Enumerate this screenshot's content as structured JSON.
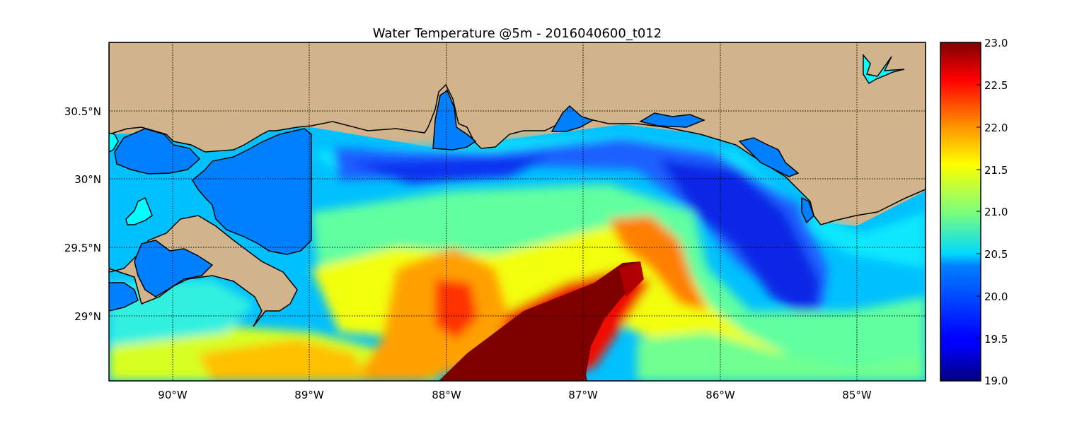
{
  "chart_data": {
    "type": "heatmap",
    "title": "Water Temperature @5m - 2016040600_t012",
    "x_ticks": [
      {
        "value": -90,
        "label": "90°W"
      },
      {
        "value": -89,
        "label": "89°W"
      },
      {
        "value": -88,
        "label": "88°W"
      },
      {
        "value": -87,
        "label": "87°W"
      },
      {
        "value": -86,
        "label": "86°W"
      },
      {
        "value": -85,
        "label": "85°W"
      }
    ],
    "y_ticks": [
      {
        "value": 30.5,
        "label": "30.5°N"
      },
      {
        "value": 30.0,
        "label": "30°N"
      },
      {
        "value": 29.5,
        "label": "29.5°N"
      },
      {
        "value": 29.0,
        "label": "29°N"
      }
    ],
    "xlim": [
      -90.47,
      -84.5
    ],
    "ylim": [
      28.53,
      31.0
    ],
    "grid": true,
    "colorbar": {
      "colormap": "jet",
      "range": [
        19.0,
        23.0
      ],
      "ticks": [
        "23.0",
        "22.5",
        "22.0",
        "21.5",
        "21.0",
        "20.5",
        "20.0",
        "19.5",
        "19.0"
      ]
    },
    "land_color": "#d2b48c",
    "no_data_water_color": "#0080ff",
    "inland_water_color": "#00ffff",
    "features": [
      {
        "name": "warm core (>23)",
        "near": [
          -87.0,
          28.8
        ],
        "value": 23.0
      },
      {
        "name": "warm filament",
        "near": [
          -86.4,
          29.5
        ],
        "value": 22.0
      },
      {
        "name": "warm eddy",
        "near": [
          -88.0,
          29.1
        ],
        "value": 22.2
      },
      {
        "name": "cold shelf water",
        "near": [
          -85.6,
          29.6
        ],
        "value": 19.6
      },
      {
        "name": "nearshore band",
        "near": [
          -87.8,
          30.1
        ],
        "value": 20.0
      }
    ]
  }
}
